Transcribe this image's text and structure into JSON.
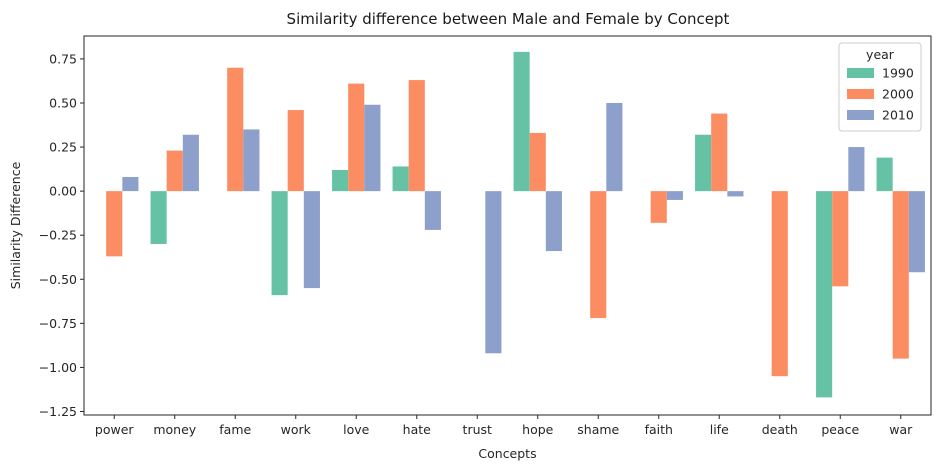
{
  "chart_data": {
    "type": "bar",
    "title": "Similarity difference between Male and Female by Concept",
    "xlabel": "Concepts",
    "ylabel": "Similarity Difference",
    "ylim": [
      -1.27,
      0.88
    ],
    "yticks": [
      -1.25,
      -1.0,
      -0.75,
      -0.5,
      -0.25,
      0.0,
      0.25,
      0.5,
      0.75
    ],
    "ytick_labels": [
      "−1.25",
      "−1.00",
      "−0.75",
      "−0.50",
      "−0.25",
      "0.00",
      "0.25",
      "0.50",
      "0.75"
    ],
    "categories": [
      "power",
      "money",
      "fame",
      "work",
      "love",
      "hate",
      "trust",
      "hope",
      "shame",
      "faith",
      "life",
      "death",
      "peace",
      "war"
    ],
    "legend": {
      "title": "year",
      "placement": "top-right"
    },
    "grid": false,
    "series": [
      {
        "name": "1990",
        "color": "#66c2a5",
        "values": [
          null,
          -0.3,
          null,
          -0.59,
          0.12,
          0.14,
          null,
          0.79,
          null,
          null,
          0.32,
          null,
          -1.17,
          0.19
        ]
      },
      {
        "name": "2000",
        "color": "#fc8d62",
        "values": [
          -0.37,
          0.23,
          0.7,
          0.46,
          0.61,
          0.63,
          null,
          0.33,
          -0.72,
          -0.18,
          0.44,
          -1.05,
          -0.54,
          -0.95
        ]
      },
      {
        "name": "2010",
        "color": "#8da0cb",
        "values": [
          0.08,
          0.32,
          0.35,
          -0.55,
          0.49,
          -0.22,
          -0.92,
          -0.34,
          0.5,
          -0.05,
          -0.03,
          null,
          0.25,
          -0.46
        ]
      }
    ]
  }
}
